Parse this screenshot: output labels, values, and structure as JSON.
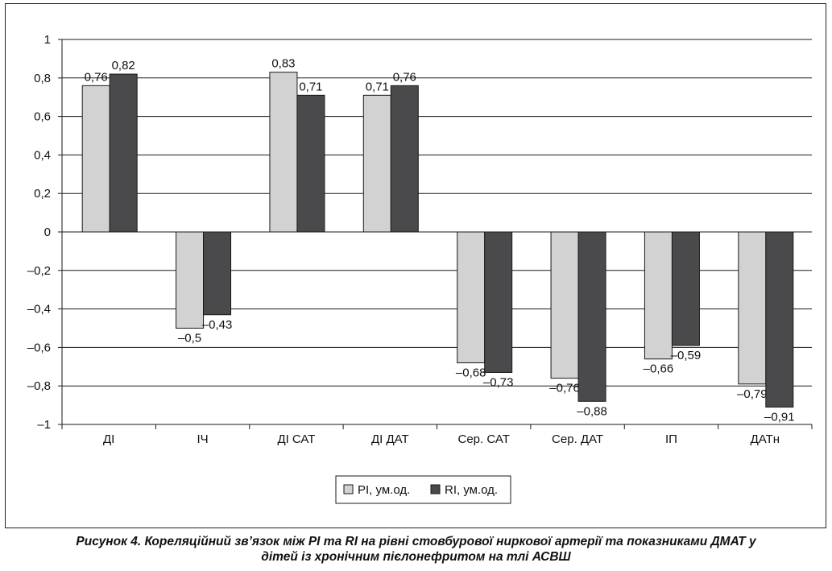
{
  "chart_data": {
    "type": "bar",
    "categories": [
      "ДІ",
      "ІЧ",
      "ДІ САТ",
      "ДІ ДАТ",
      "Сер. САТ",
      "Сер. ДАТ",
      "ІП",
      "ДАТн"
    ],
    "series": [
      {
        "name": "PI, ум.од.",
        "color": "#d2d2d2",
        "values": [
          0.76,
          -0.5,
          0.83,
          0.71,
          -0.68,
          -0.76,
          -0.66,
          -0.79
        ],
        "labels": [
          "0,76",
          "–0,5",
          "0,83",
          "0,71",
          "–0,68",
          "–0,76",
          "–0,66",
          "–0,79"
        ]
      },
      {
        "name": "RI, ум.од.",
        "color": "#4a4a4c",
        "values": [
          0.82,
          -0.43,
          0.71,
          0.76,
          -0.73,
          -0.88,
          -0.59,
          -0.91
        ],
        "labels": [
          "0,82",
          "–0,43",
          "0,71",
          "0,76",
          "–0,73",
          "–0,88",
          "–0,59",
          "–0,91"
        ]
      }
    ],
    "ylim": [
      -1,
      1
    ],
    "yticks": [
      1,
      0.8,
      0.6,
      0.4,
      0.2,
      0,
      -0.2,
      -0.4,
      -0.6,
      -0.8,
      -1
    ],
    "ytick_labels": [
      "1",
      "0,8",
      "0,6",
      "0,4",
      "0,2",
      "0",
      "–0,2",
      "–0,4",
      "–0,6",
      "–0,8",
      "–1"
    ],
    "grid": true,
    "legend": "bottom-center",
    "xlabel": "",
    "ylabel": ""
  },
  "caption": {
    "line1": "Рисунок 4. Кореляційний зв’язок між PI та RI на рівні стовбурової ниркової артерії та показниками ДМАТ у",
    "line2": "дітей із хронічним пієлонефритом на тлі АСВШ"
  }
}
